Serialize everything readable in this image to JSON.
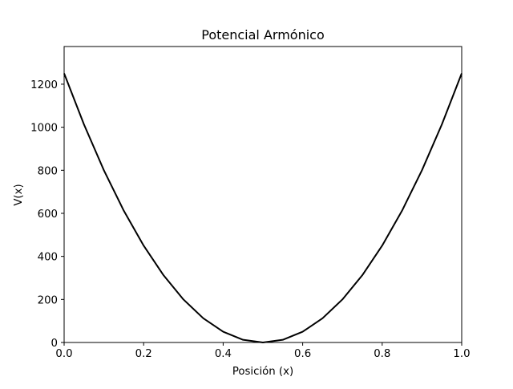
{
  "chart_data": {
    "type": "line",
    "title": "Potencial Armónico",
    "xlabel": "Posición (x)",
    "ylabel": "V(x)",
    "xlim": [
      0,
      1
    ],
    "ylim": [
      0,
      1375
    ],
    "xticks": [
      "0.0",
      "0.2",
      "0.4",
      "0.6",
      "0.8",
      "1.0"
    ],
    "yticks": [
      "0",
      "200",
      "400",
      "600",
      "800",
      "1000",
      "1200"
    ],
    "grid": false,
    "legend": "none",
    "series": [
      {
        "color": "#000000",
        "x": [
          0.0,
          0.05,
          0.1,
          0.15,
          0.2,
          0.25,
          0.3,
          0.35,
          0.4,
          0.45,
          0.5,
          0.55,
          0.6,
          0.65,
          0.7,
          0.75,
          0.8,
          0.85,
          0.9,
          0.95,
          1.0
        ],
        "y": [
          1250,
          1012.5,
          800,
          612.5,
          450,
          312.5,
          200,
          112.5,
          50,
          12.5,
          0,
          12.5,
          50,
          112.5,
          200,
          312.5,
          450,
          612.5,
          800,
          1012.5,
          1250
        ]
      }
    ]
  }
}
